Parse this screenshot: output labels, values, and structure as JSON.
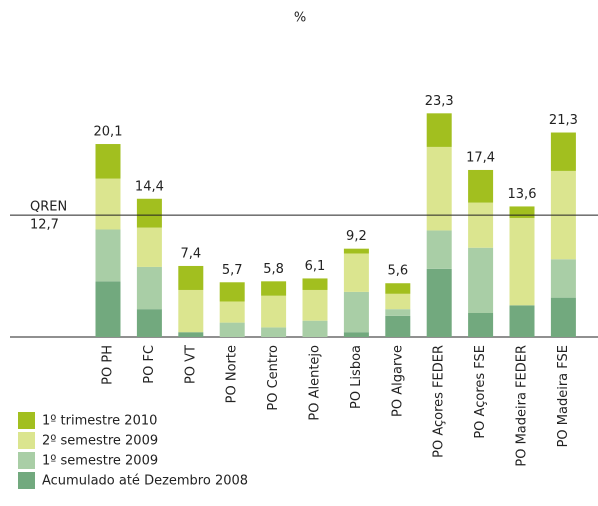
{
  "chart_data": {
    "type": "stacked_bar",
    "subtitle": "%",
    "categories": [
      "PO PH",
      "PO FC",
      "PO VT",
      "PO Norte",
      "PO Centro",
      "PO Alentejo",
      "PO Lisboa",
      "PO Algarve",
      "PO Açores FEDER",
      "PO Açores FSE",
      "PO Madeira FEDER",
      "PO Madeira FSE"
    ],
    "series": [
      {
        "name": "Acumulado até Dezembro 2008",
        "color": "#72a97e",
        "values": [
          5.8,
          2.9,
          0.5,
          0,
          0,
          0,
          0.5,
          2.2,
          7.1,
          2.5,
          3.3,
          4.1
        ]
      },
      {
        "name": "1º semestre 2009",
        "color": "#a9cea6",
        "values": [
          5.4,
          4.4,
          0,
          1.5,
          1.0,
          1.7,
          4.2,
          0.7,
          4.0,
          6.8,
          0,
          4.0
        ]
      },
      {
        "name": "2º semestre 2009",
        "color": "#dbe58f",
        "values": [
          5.3,
          4.1,
          4.4,
          2.2,
          3.3,
          3.2,
          4.0,
          1.6,
          8.7,
          4.7,
          9.1,
          9.2
        ]
      },
      {
        "name": "1º trimestre 2010",
        "color": "#a2bf1f",
        "values": [
          3.6,
          3.0,
          2.5,
          2.0,
          1.5,
          1.2,
          0.5,
          1.1,
          3.5,
          3.4,
          1.2,
          4.0
        ]
      }
    ],
    "totals": [
      20.1,
      14.4,
      7.4,
      5.7,
      5.8,
      6.1,
      9.2,
      5.6,
      23.3,
      17.4,
      13.6,
      21.3
    ],
    "total_labels": [
      "20,1",
      "14,4",
      "7,4",
      "5,7",
      "5,8",
      "6,1",
      "9,2",
      "5,6",
      "23,3",
      "17,4",
      "13,6",
      "21,3"
    ],
    "reference": {
      "label": "QREN",
      "value": 12.7,
      "value_label": "12,7"
    }
  }
}
